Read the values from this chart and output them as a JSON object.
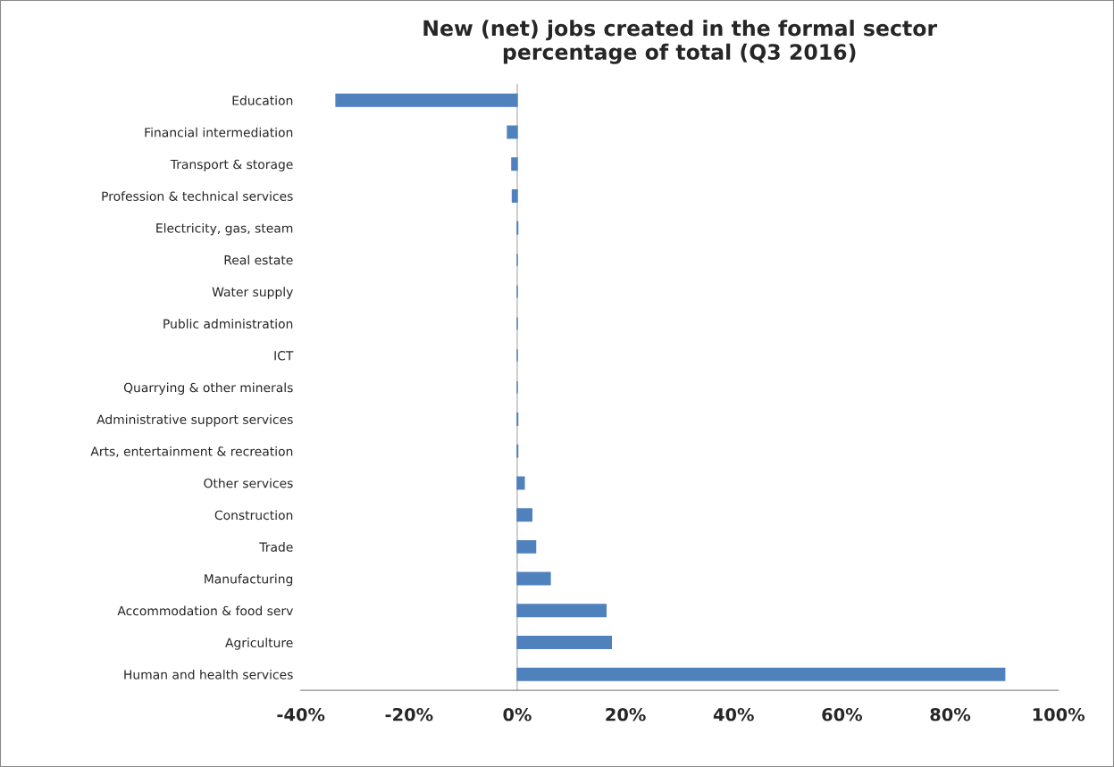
{
  "chart_data": {
    "type": "bar",
    "orientation": "horizontal",
    "title": "New (net) jobs created in the formal sector\npercentage of total (Q3 2016)",
    "categories": [
      "Education",
      "Financial intermediation",
      "Transport & storage",
      "Profession & technical services",
      "Electricity, gas, steam",
      "Real estate",
      "Water supply",
      "Public administration",
      "ICT",
      "Quarrying & other minerals",
      "Administrative support services",
      "Arts, entertainment & recreation",
      "Other services",
      "Construction",
      "Trade",
      "Manufacturing",
      "Accommodation & food serv",
      "Agriculture",
      "Human and health services"
    ],
    "values": [
      -33.5,
      -1.8,
      -1.0,
      -0.9,
      0.1,
      0,
      0,
      0,
      0,
      0,
      0.1,
      0.1,
      1.3,
      2.7,
      3.4,
      6.1,
      16.4,
      17.4,
      90.1
    ],
    "color": "#4f81bd",
    "xlim": [
      -40,
      100
    ],
    "xticks": [
      {
        "value": -40,
        "label": "-40%"
      },
      {
        "value": -20,
        "label": "-20%"
      },
      {
        "value": 0,
        "label": "0%"
      },
      {
        "value": 20,
        "label": "20%"
      },
      {
        "value": 40,
        "label": "40%"
      },
      {
        "value": 60,
        "label": "60%"
      },
      {
        "value": 80,
        "label": "80%"
      },
      {
        "value": 100,
        "label": "100%"
      }
    ],
    "legend": false
  }
}
